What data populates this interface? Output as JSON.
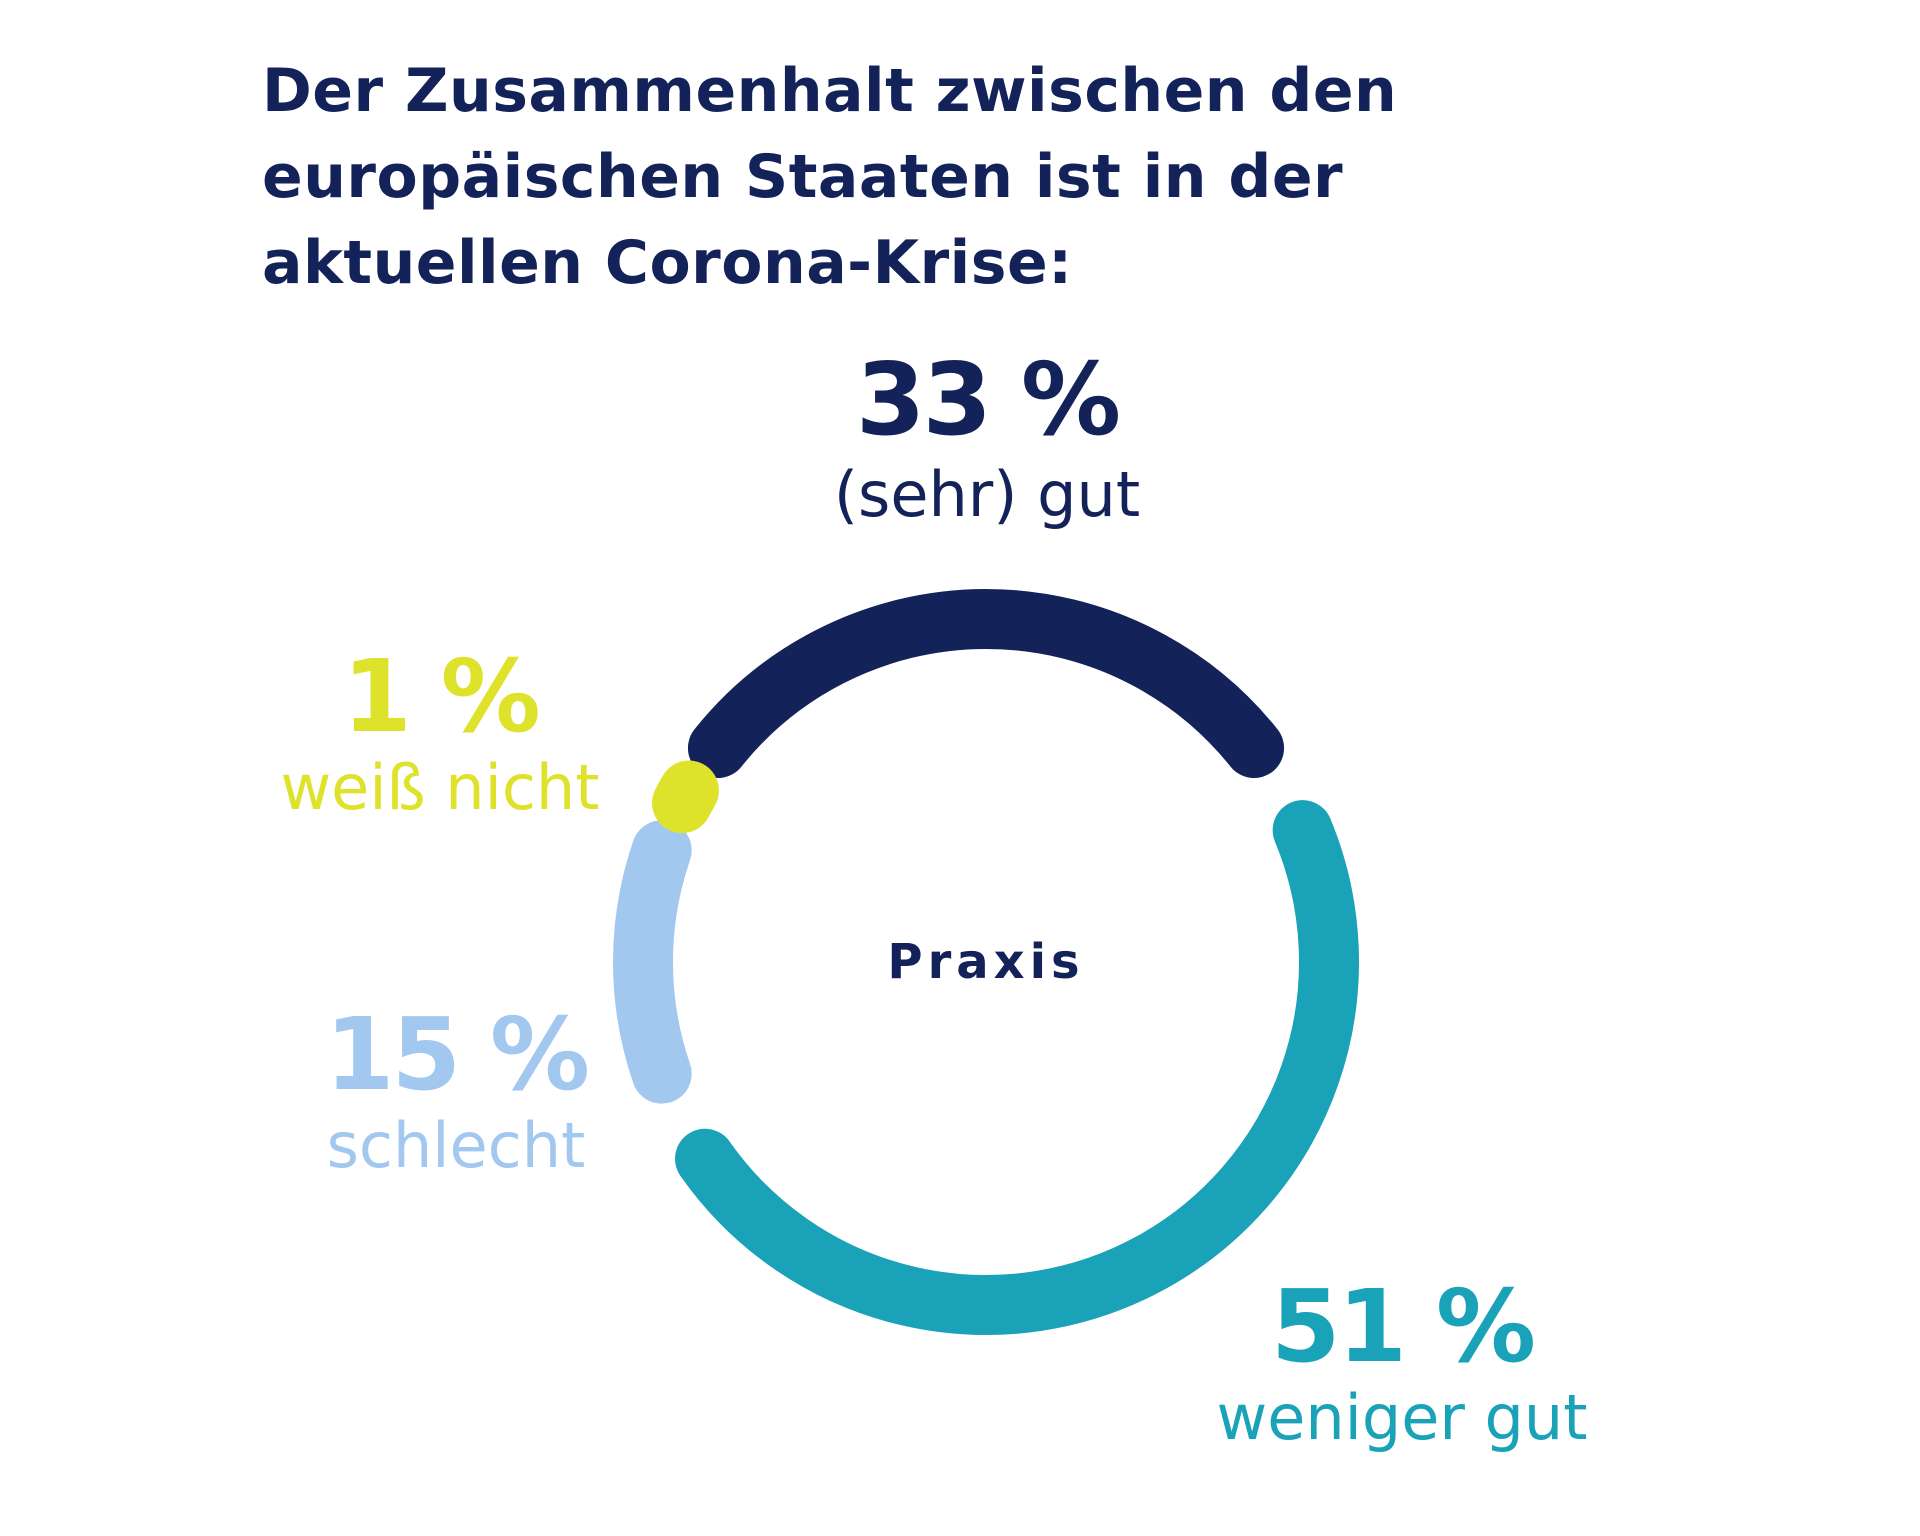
{
  "chart_data": {
    "type": "pie",
    "title": "Der Zusammenhalt zwischen den europäischen Staaten ist in der aktuellen Corona-Krise:",
    "center_label": "Praxis",
    "categories": [
      "(sehr) gut",
      "weniger gut",
      "schlecht",
      "weiß nicht"
    ],
    "values": [
      33,
      51,
      15,
      1
    ],
    "value_labels": [
      "33 %",
      "51 %",
      "15 %",
      "1 %"
    ],
    "colors": [
      "#14225a",
      "#1aa2b8",
      "#a3c8ef",
      "#dfe22a"
    ]
  }
}
